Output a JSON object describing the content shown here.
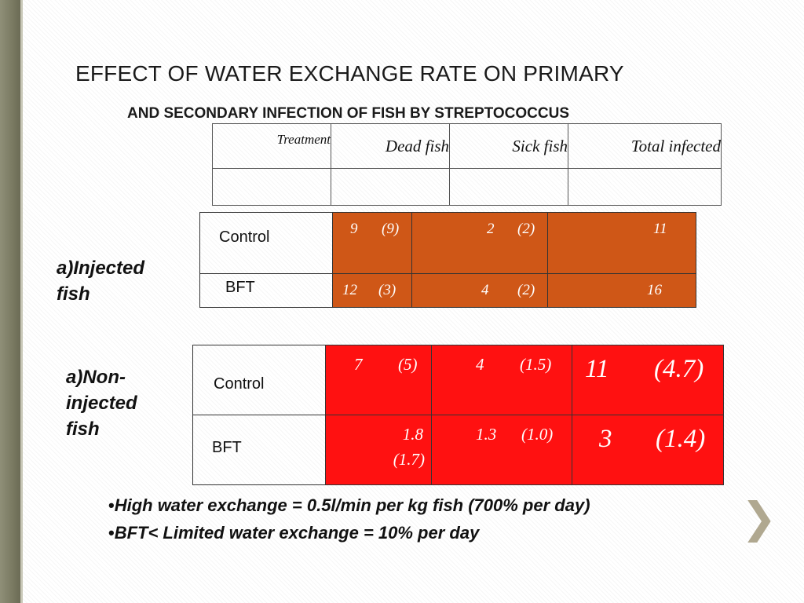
{
  "title_line1": "EFFECT OF WATER EXCHANGE RATE ON PRIMARY",
  "title_line2": "AND SECONDARY INFECTION OF FISH BY STREPTOCOCCUS",
  "header": {
    "treatment": "Treatment",
    "dead_fish": "Dead fish",
    "sick_fish": "Sick fish",
    "total_infected": "Total infected"
  },
  "injected": {
    "group_label_line1": "a)Injected",
    "group_label_line2": "fish",
    "rows": [
      {
        "label": "Control",
        "dead": "9",
        "dead_paren": "(9)",
        "sick": "2",
        "sick_paren": "(2)",
        "total": "11"
      },
      {
        "label": "BFT",
        "dead": "12",
        "dead_paren": "(3)",
        "sick": "4",
        "sick_paren": "(2)",
        "total": "16"
      }
    ]
  },
  "non_injected": {
    "group_label_line1": "a)Non-",
    "group_label_line2": "injected",
    "group_label_line3": "fish",
    "rows": [
      {
        "label": "Control",
        "dead": "7",
        "dead_paren": "(5)",
        "sick": "4",
        "sick_paren": "(1.5)",
        "total": "11",
        "total_paren": "(4.7)"
      },
      {
        "label": "BFT",
        "dead": "1.8",
        "dead_paren": "(1.7)",
        "sick": "1.3",
        "sick_paren": "(1.0)",
        "total": "3",
        "total_paren": "(1.4)"
      }
    ]
  },
  "bullets": [
    "High water exchange = 0.5l/min per kg fish (700% per day)",
    "BFT< Limited water exchange = 10% per day"
  ],
  "bullet_glyph": "•",
  "next_glyph": "❯",
  "colors": {
    "orange": "#cf5717",
    "red": "#ff1111",
    "side_bar": "#7a7a62"
  }
}
